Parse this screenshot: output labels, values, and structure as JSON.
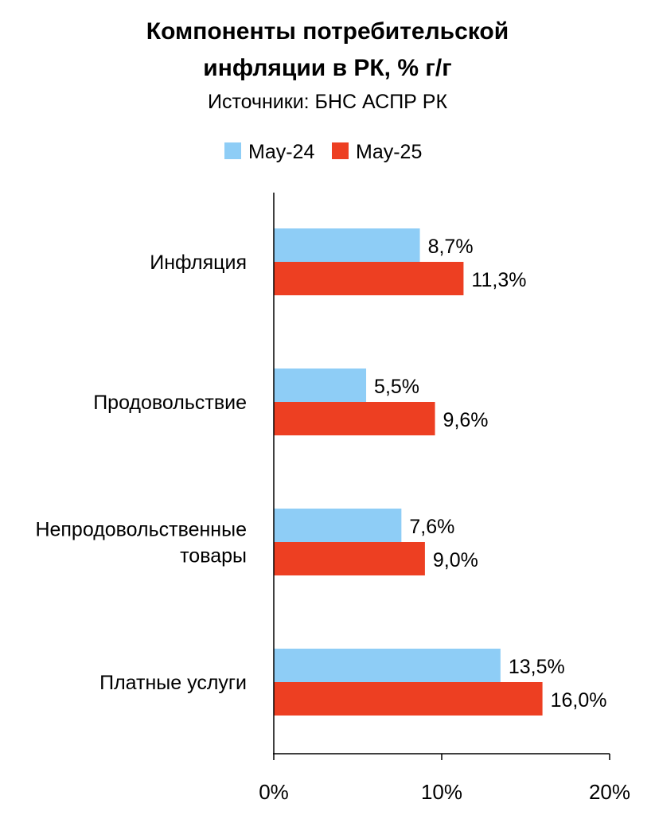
{
  "title_line1": "Компоненты потребительской",
  "title_line2": "инфляции в РК, % г/г",
  "subtitle": "Источники: БНС АСПР РК",
  "colors": {
    "series_2024": "#8ecdf6",
    "series_2025": "#ed3f22",
    "axis": "#000000"
  },
  "chart_data": {
    "type": "bar",
    "orientation": "horizontal",
    "categories": [
      [
        "Инфляция"
      ],
      [
        "Продовольствие"
      ],
      [
        "Непродовольственные",
        "товары"
      ],
      [
        "Платные услуги"
      ]
    ],
    "series": [
      {
        "name": "May-24",
        "values": [
          8.7,
          5.5,
          7.6,
          13.5
        ],
        "labels": [
          "8,7%",
          "5,5%",
          "7,6%",
          "13,5%"
        ]
      },
      {
        "name": "May-25",
        "values": [
          11.3,
          9.6,
          9.0,
          16.0
        ],
        "labels": [
          "11,3%",
          "9,6%",
          "9,0%",
          "16,0%"
        ]
      }
    ],
    "xlim": [
      0,
      20
    ],
    "xticks": [
      0,
      10,
      20
    ],
    "xtick_labels": [
      "0%",
      "10%",
      "20%"
    ],
    "legend_position": "top",
    "grid": false
  }
}
